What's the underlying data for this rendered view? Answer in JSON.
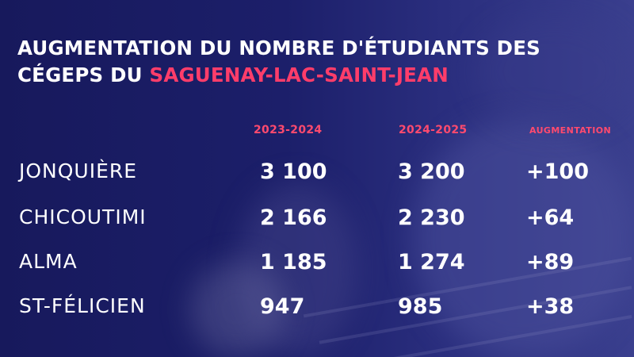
{
  "title": {
    "line1": "AUGMENTATION DU NOMBRE D'ÉTUDIANTS DES",
    "line2_prefix": "CÉGEPS DU ",
    "line2_accent": "SAGUENAY-LAC-SAINT-JEAN"
  },
  "columns": [
    "2023-2024",
    "2024-2025",
    "AUGMENTATION"
  ],
  "rows": [
    {
      "name": "JONQUIÈRE",
      "y2023": "3 100",
      "y2024": "3 200",
      "increase": "+100"
    },
    {
      "name": "CHICOUTIMI",
      "y2023": "2 166",
      "y2024": "2 230",
      "increase": "+64"
    },
    {
      "name": "ALMA",
      "y2023": "1 185",
      "y2024": "1 274",
      "increase": "+89"
    },
    {
      "name": "ST-FÉLICIEN",
      "y2023": "947",
      "y2024": "985",
      "increase": "+38"
    }
  ],
  "colors": {
    "background": "#1c1f6a",
    "accent": "#ff3d6a",
    "text": "#ffffff"
  }
}
